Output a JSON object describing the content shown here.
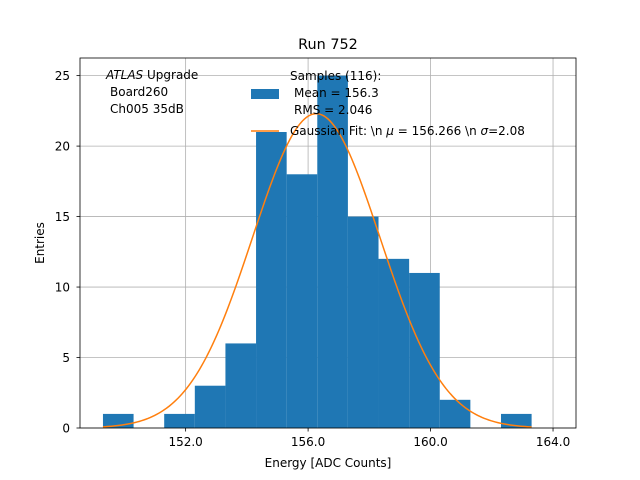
{
  "chart_data": {
    "type": "bar",
    "title": "Run 752",
    "xlabel": "Energy [ADC Counts]",
    "ylabel": "Entries",
    "xlim": [
      148.55,
      164.75
    ],
    "ylim": [
      0,
      26.25
    ],
    "grid": true,
    "x_ticks": [
      {
        "value": 152,
        "label": "152.0"
      },
      {
        "value": 156,
        "label": "156.0"
      },
      {
        "value": 160,
        "label": "160.0"
      },
      {
        "value": 164,
        "label": "164.0"
      }
    ],
    "y_ticks": [
      {
        "value": 0,
        "label": "0"
      },
      {
        "value": 5,
        "label": "5"
      },
      {
        "value": 10,
        "label": "10"
      },
      {
        "value": 15,
        "label": "15"
      },
      {
        "value": 20,
        "label": "20"
      },
      {
        "value": 25,
        "label": "25"
      }
    ],
    "histogram": {
      "name": "Samples (116)",
      "color": "#1f77b4",
      "bins": [
        {
          "x0": 149.3,
          "x1": 150.3,
          "count": 1
        },
        {
          "x0": 150.3,
          "x1": 151.3,
          "count": 0
        },
        {
          "x0": 151.3,
          "x1": 152.3,
          "count": 1
        },
        {
          "x0": 152.3,
          "x1": 153.3,
          "count": 3
        },
        {
          "x0": 153.3,
          "x1": 154.3,
          "count": 6
        },
        {
          "x0": 154.3,
          "x1": 155.3,
          "count": 21
        },
        {
          "x0": 155.3,
          "x1": 156.3,
          "count": 18
        },
        {
          "x0": 156.3,
          "x1": 157.3,
          "count": 25
        },
        {
          "x0": 157.3,
          "x1": 158.3,
          "count": 15
        },
        {
          "x0": 158.3,
          "x1": 159.3,
          "count": 12
        },
        {
          "x0": 159.3,
          "x1": 160.3,
          "count": 11
        },
        {
          "x0": 160.3,
          "x1": 161.3,
          "count": 2
        },
        {
          "x0": 161.3,
          "x1": 162.3,
          "count": 0
        },
        {
          "x0": 162.3,
          "x1": 163.3,
          "count": 1
        }
      ]
    },
    "fit": {
      "type": "gaussian",
      "color": "#ff7f0e",
      "mu": 156.266,
      "sigma": 2.08,
      "amplitude": 22.3,
      "x_range": [
        149.3,
        163.3
      ]
    },
    "annotation": {
      "experiment": "ATLAS",
      "experiment_suffix": " Upgrade",
      "line2": "Board260",
      "line3": "Ch005 35dB"
    },
    "legend": {
      "position": "top-center",
      "hist_line1": "Samples (116):",
      "hist_line2": "Mean = 156.3",
      "hist_line3": "RMS = 2.046",
      "fit_prefix": "Gaussian Fit: \\n ",
      "fit_mu_symbol": "μ",
      "fit_mu_text": " = 156.266 \\n ",
      "fit_sigma_symbol": "σ",
      "fit_sigma_text": "=2.08"
    }
  }
}
